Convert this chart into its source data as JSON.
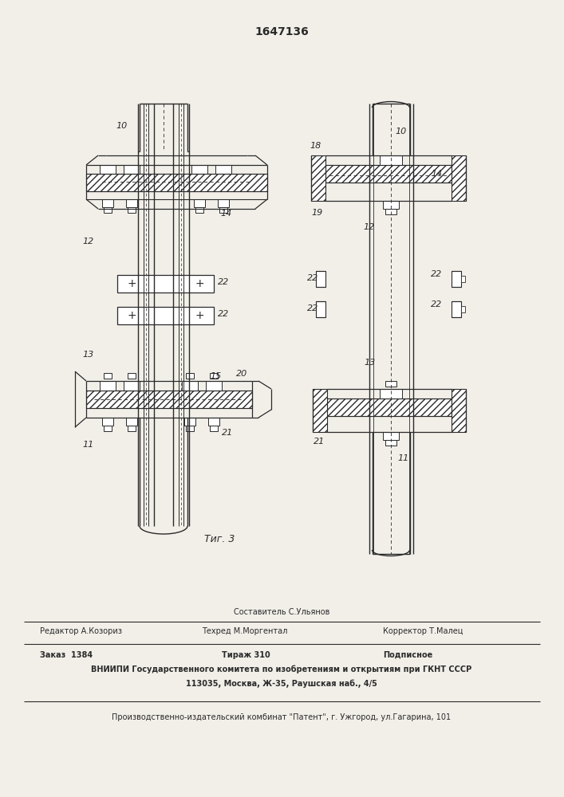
{
  "patent_number": "1647136",
  "bg_color": "#f2efe9",
  "line_color": "#2a2a2a",
  "fig_caption": "Τиг. 3",
  "text_editor_top": "Составитель С.Ульянов",
  "text_editor": "Редактор А.Козориз",
  "text_tehred": "Техред М.Моргентал",
  "text_korrektor": "Корректор Т.Малец",
  "text_zakaz": "Заказ  1384",
  "text_tirazh": "Тираж 310",
  "text_podpisnoe": "Подписное",
  "text_vniip1": "ВНИИПИ Государственного комитета по изобретениям и открытиям при ГКНТ СССР",
  "text_vniip2": "113035, Москва, Ж-35, Раушская наб., 4/5",
  "text_proizv": "Производственно-издательский комбинат \"Патент\", г. Ужгород, ул.Гагарина, 101"
}
